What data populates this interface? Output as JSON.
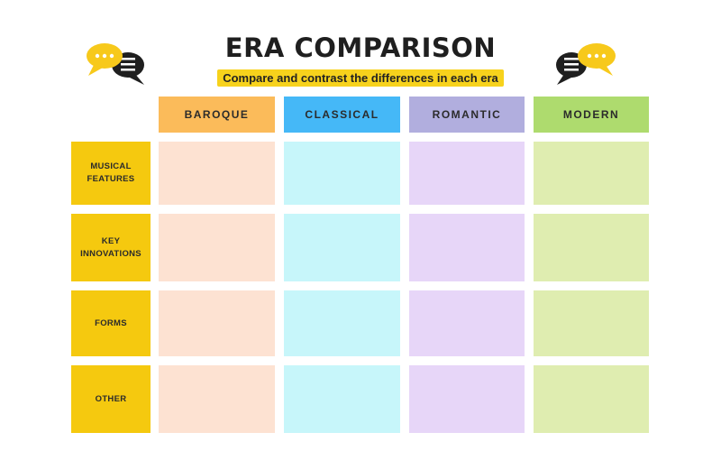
{
  "title": "ERA COMPARISON",
  "subtitle": "Compare and contrast the differences in each era",
  "icons": {
    "left": "speech-bubbles-icon",
    "right": "speech-bubbles-icon"
  },
  "columns": [
    {
      "label": "BAROQUE",
      "header_color": "#fbbb5a",
      "cell_color": "#fde2d2"
    },
    {
      "label": "CLASSICAL",
      "header_color": "#45b8f7",
      "cell_color": "#c7f6fa"
    },
    {
      "label": "ROMANTIC",
      "header_color": "#b1aede",
      "cell_color": "#e7d6f8"
    },
    {
      "label": "MODERN",
      "header_color": "#aedb6e",
      "cell_color": "#dfedb0"
    }
  ],
  "rows": [
    {
      "label": "MUSICAL FEATURES"
    },
    {
      "label": "KEY INNOVATIONS"
    },
    {
      "label": "FORMS"
    },
    {
      "label": "OTHER"
    }
  ],
  "colors": {
    "row_label": "#f5c90f",
    "subtitle_highlight": "#f7d21c",
    "bubble_yellow": "#f7c91b",
    "bubble_dark": "#1f1f1f"
  }
}
